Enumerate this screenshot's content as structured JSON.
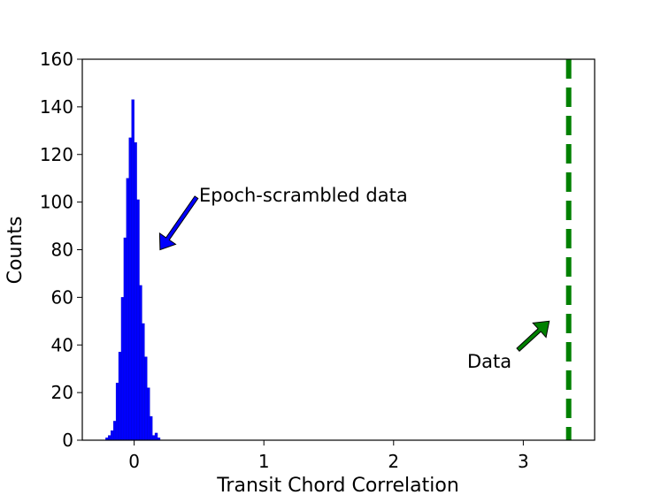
{
  "chart_data": {
    "type": "bar",
    "xlabel": "Transit Chord Correlation",
    "ylabel": "Counts",
    "xlim": [
      -0.4,
      3.55
    ],
    "ylim": [
      0,
      160
    ],
    "xticks": [
      0,
      1,
      2,
      3
    ],
    "yticks": [
      0,
      20,
      40,
      60,
      80,
      100,
      120,
      140,
      160
    ],
    "grid": false,
    "histogram": {
      "bin_width": 0.02,
      "bin_starts": [
        -0.22,
        -0.2,
        -0.18,
        -0.16,
        -0.14,
        -0.12,
        -0.1,
        -0.08,
        -0.06,
        -0.04,
        -0.02,
        0.0,
        0.02,
        0.04,
        0.06,
        0.08,
        0.1,
        0.12,
        0.14,
        0.16,
        0.18
      ],
      "counts": [
        1,
        2,
        4,
        8,
        24,
        37,
        60,
        85,
        110,
        127,
        143,
        125,
        101,
        65,
        49,
        35,
        22,
        10,
        2,
        3,
        1
      ],
      "color": "#0000ff"
    },
    "data_line": {
      "x": 3.35,
      "color": "#008000",
      "style": "dashed"
    },
    "annotations": [
      {
        "text": "Epoch-scrambled data",
        "color": "#0000ff",
        "arrow_tip": [
          0.2,
          80
        ],
        "arrow_tail": [
          0.48,
          102
        ]
      },
      {
        "text": "Data",
        "color": "#008000",
        "arrow_tip": [
          3.2,
          50
        ],
        "arrow_tail": [
          2.96,
          38
        ]
      }
    ]
  }
}
